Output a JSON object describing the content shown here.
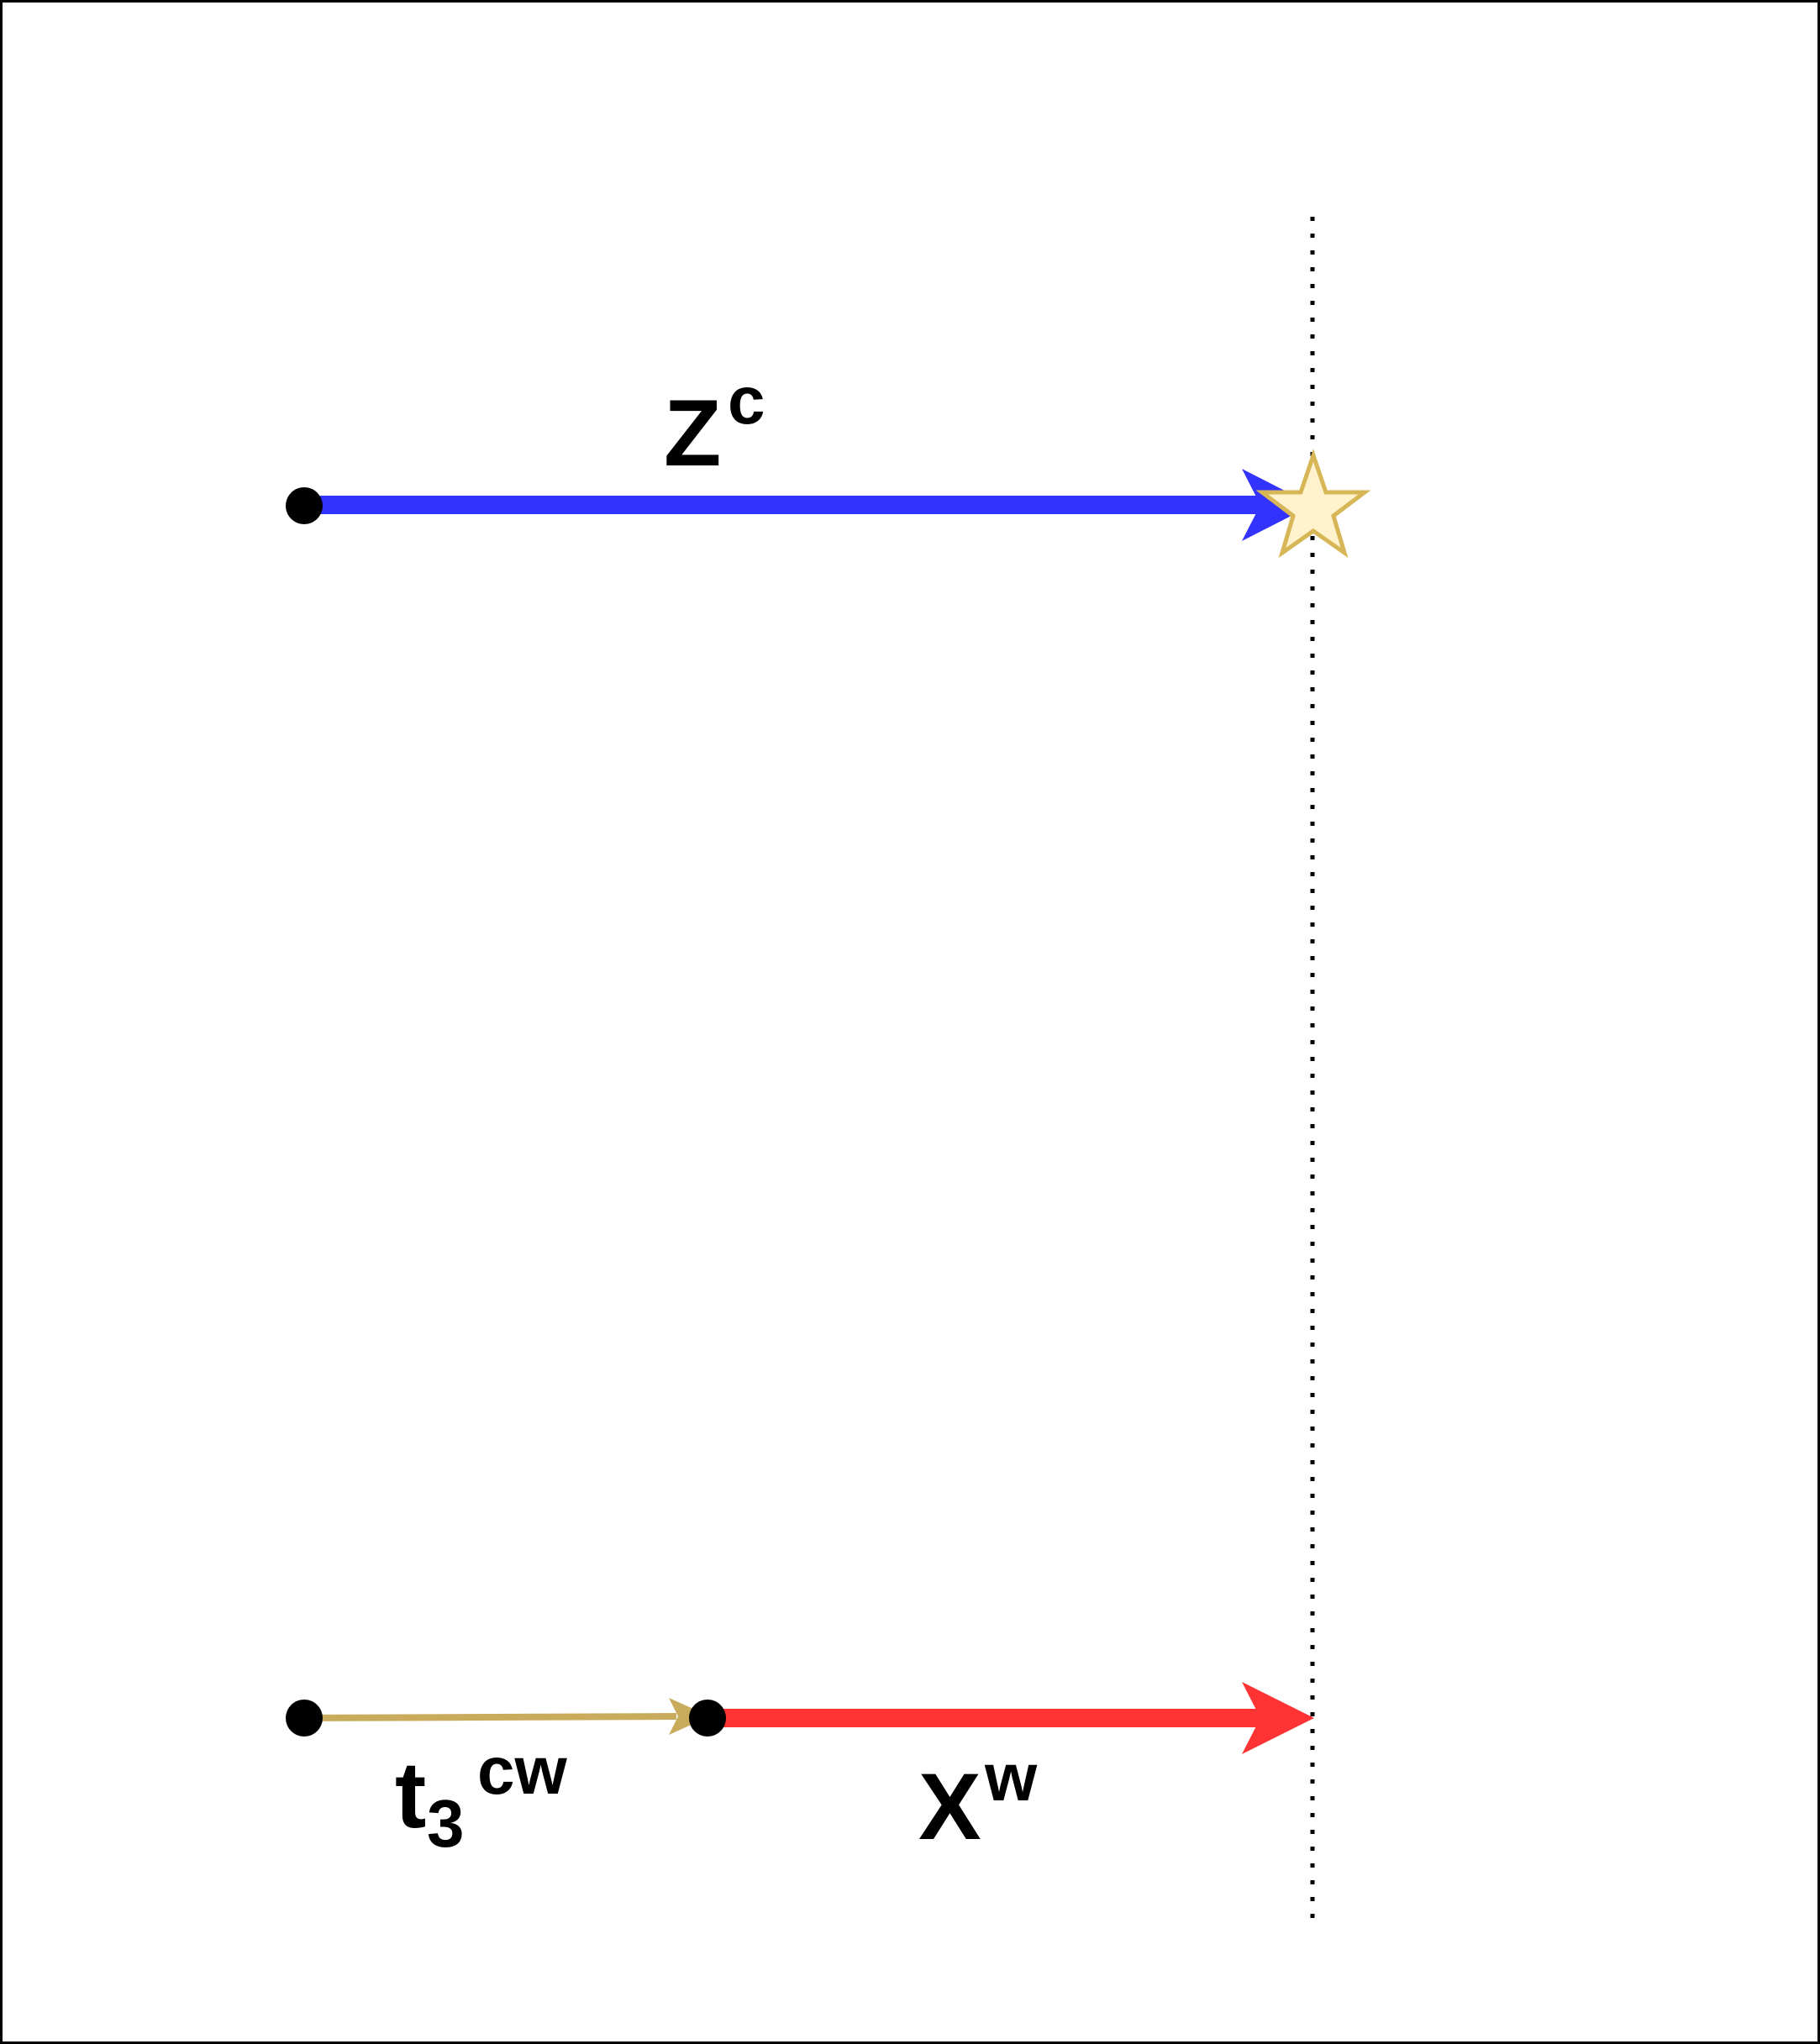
{
  "labels": {
    "z_main": "Z",
    "z_sup": "c",
    "t_main": "t",
    "t_sub": "3",
    "t_sup": "cw",
    "x_main": "X",
    "x_sup": "w"
  },
  "colors": {
    "frame": "#000000",
    "z_arrow": "#3333ff",
    "t_arrow": "#c9ab5c",
    "x_arrow": "#ff3333",
    "point": "#000000",
    "guide": "#000000",
    "star_fill": "#fff2cc",
    "star_stroke": "#d6b656"
  }
}
